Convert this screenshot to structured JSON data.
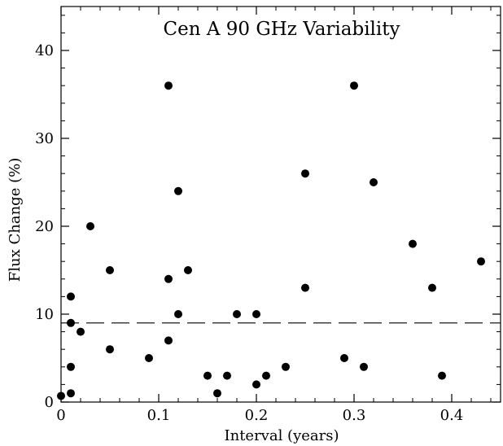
{
  "chart_data": {
    "type": "scatter",
    "title": "Cen A 90 GHz Variability",
    "xlabel": "Interval (years)",
    "ylabel": "Flux Change (%)",
    "xlim": [
      0,
      0.45
    ],
    "ylim": [
      0,
      45
    ],
    "x_ticks": [
      0,
      0.1,
      0.2,
      0.3,
      0.4
    ],
    "x_tick_labels": [
      "0",
      "0.1",
      "0.2",
      "0.3",
      "0.4"
    ],
    "y_ticks": [
      0,
      10,
      20,
      30,
      40
    ],
    "y_tick_labels": [
      "0",
      "10",
      "20",
      "30",
      "40"
    ],
    "grid": false,
    "reference_line": {
      "y": 9,
      "style": "dashed"
    },
    "points": [
      {
        "x": 0.0,
        "y": 0.7
      },
      {
        "x": 0.01,
        "y": 1
      },
      {
        "x": 0.01,
        "y": 4
      },
      {
        "x": 0.01,
        "y": 9
      },
      {
        "x": 0.01,
        "y": 12
      },
      {
        "x": 0.02,
        "y": 8
      },
      {
        "x": 0.03,
        "y": 20
      },
      {
        "x": 0.05,
        "y": 6
      },
      {
        "x": 0.05,
        "y": 15
      },
      {
        "x": 0.09,
        "y": 5
      },
      {
        "x": 0.11,
        "y": 7
      },
      {
        "x": 0.11,
        "y": 14
      },
      {
        "x": 0.11,
        "y": 36
      },
      {
        "x": 0.12,
        "y": 10
      },
      {
        "x": 0.12,
        "y": 24
      },
      {
        "x": 0.13,
        "y": 15
      },
      {
        "x": 0.15,
        "y": 3
      },
      {
        "x": 0.16,
        "y": 1
      },
      {
        "x": 0.17,
        "y": 3
      },
      {
        "x": 0.18,
        "y": 10
      },
      {
        "x": 0.2,
        "y": 2
      },
      {
        "x": 0.2,
        "y": 10
      },
      {
        "x": 0.21,
        "y": 3
      },
      {
        "x": 0.23,
        "y": 4
      },
      {
        "x": 0.25,
        "y": 13
      },
      {
        "x": 0.25,
        "y": 26
      },
      {
        "x": 0.29,
        "y": 5
      },
      {
        "x": 0.3,
        "y": 36
      },
      {
        "x": 0.31,
        "y": 4
      },
      {
        "x": 0.32,
        "y": 25
      },
      {
        "x": 0.36,
        "y": 18
      },
      {
        "x": 0.38,
        "y": 13
      },
      {
        "x": 0.39,
        "y": 3
      },
      {
        "x": 0.43,
        "y": 16
      }
    ]
  }
}
